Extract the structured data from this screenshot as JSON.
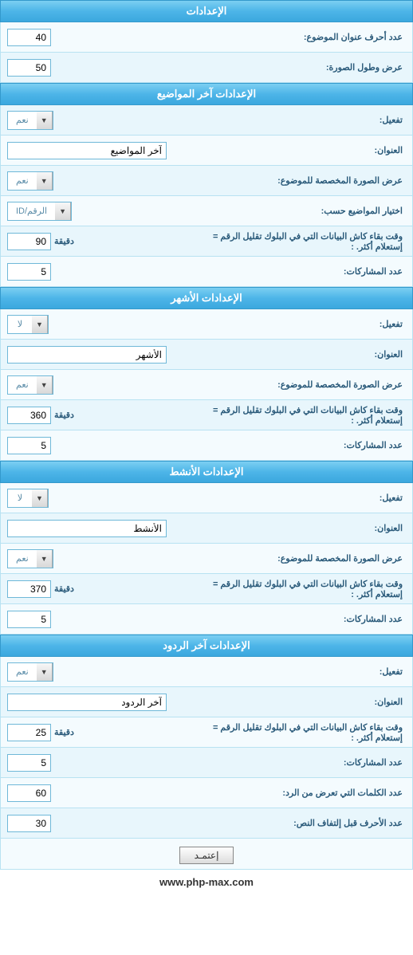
{
  "sections": {
    "general": {
      "title": "الإعدادات",
      "chars_label": "عدد أحرف عنوان الموضوع:",
      "chars_value": "40",
      "img_label": "عرض وطول الصورة:",
      "img_value": "50"
    },
    "latest": {
      "title": "الإعدادات آخر المواضيع",
      "enable_label": "تفعيل:",
      "enable_value": "نعم",
      "title_label": "العنوان:",
      "title_value": "آخر المواضيع",
      "img_label": "عرض الصورة المخصصة للموضوع:",
      "img_value": "نعم",
      "sortby_label": "اختيار المواضيع حسب:",
      "sortby_value": "الرقم/ID",
      "cache_label": "وقت بقاء كاش البيانات التي في البلوك تقليل الرقم = إستعلام أكثر. :",
      "cache_value": "90",
      "cache_suffix": "دقيقة",
      "count_label": "عدد المشاركات:",
      "count_value": "5"
    },
    "monthly": {
      "title": "الإعدادات الأشهر",
      "enable_label": "تفعيل:",
      "enable_value": "لا",
      "title_label": "العنوان:",
      "title_value": "الأشهر",
      "img_label": "عرض الصورة المخصصة للموضوع:",
      "img_value": "نعم",
      "cache_label": "وقت بقاء كاش البيانات التي في البلوك تقليل الرقم = إستعلام أكثر. :",
      "cache_value": "360",
      "cache_suffix": "دقيقة",
      "count_label": "عدد المشاركات:",
      "count_value": "5"
    },
    "active": {
      "title": "الإعدادات الأنشط",
      "enable_label": "تفعيل:",
      "enable_value": "لا",
      "title_label": "العنوان:",
      "title_value": "الأنشط",
      "img_label": "عرض الصورة المخصصة للموضوع:",
      "img_value": "نعم",
      "cache_label": "وقت بقاء كاش البيانات التي في البلوك تقليل الرقم = إستعلام أكثر. :",
      "cache_value": "370",
      "cache_suffix": "دقيقة",
      "count_label": "عدد المشاركات:",
      "count_value": "5"
    },
    "replies": {
      "title": "الإعدادات آخر الردود",
      "enable_label": "تفعيل:",
      "enable_value": "نعم",
      "title_label": "العنوان:",
      "title_value": "آخر الردود",
      "cache_label": "وقت بقاء كاش البيانات التي في البلوك تقليل الرقم = إستعلام أكثر. :",
      "cache_value": "25",
      "cache_suffix": "دقيقة",
      "count_label": "عدد المشاركات:",
      "count_value": "5",
      "words_label": "عدد الكلمات التي تعرض من الرد:",
      "words_value": "60",
      "chars_label": "عدد الأحرف قبل إلتفاف النص:",
      "chars_value": "30"
    }
  },
  "submit_label": "إعتمـد",
  "footer_text": "www.php-max.com"
}
